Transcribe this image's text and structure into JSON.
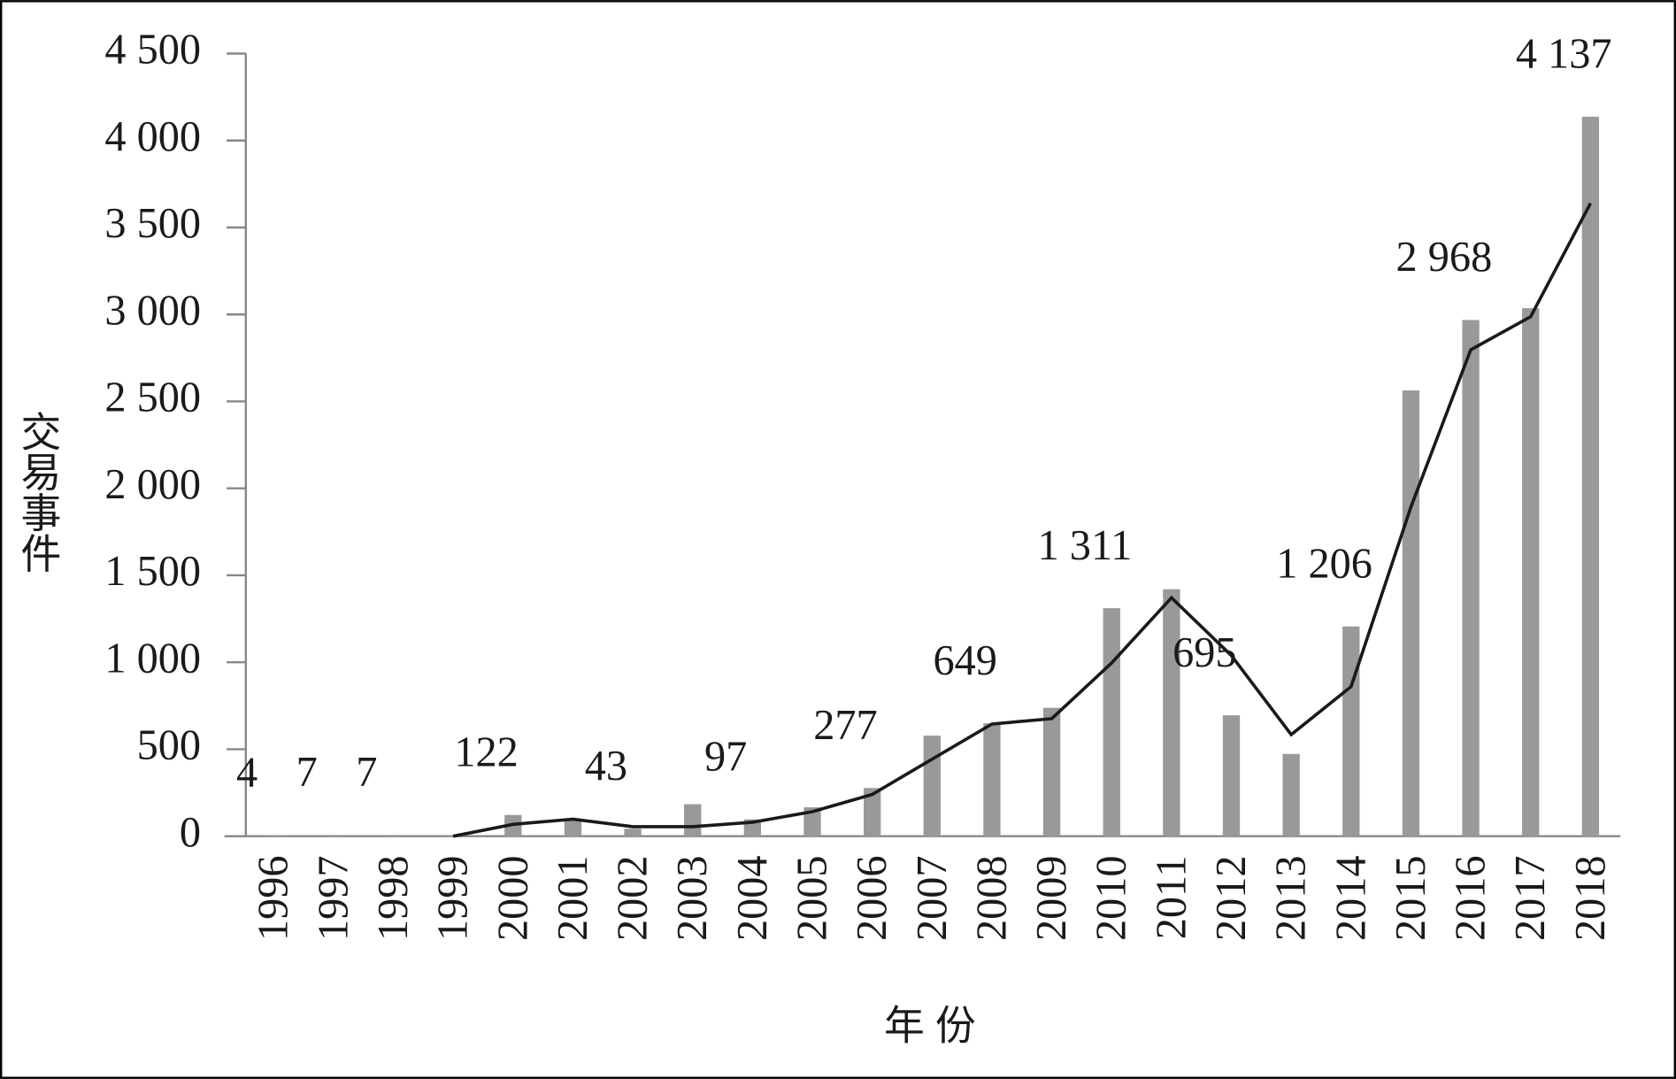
{
  "chart_data": {
    "type": "bar",
    "x_label": "年份",
    "y_label": "交易事件",
    "categories": [
      "1996",
      "1997",
      "1998",
      "1999",
      "2000",
      "2001",
      "2002",
      "2003",
      "2004",
      "2005",
      "2006",
      "2007",
      "2008",
      "2009",
      "2010",
      "2011",
      "2012",
      "2013",
      "2014",
      "2015",
      "2016",
      "2017",
      "2018"
    ],
    "values": [
      4,
      7,
      7,
      2,
      122,
      98,
      43,
      184,
      97,
      166,
      277,
      578,
      649,
      738,
      1311,
      1420,
      695,
      473,
      1206,
      2563,
      2968,
      3036,
      4137
    ],
    "value_labels": [
      "4",
      "7",
      "7",
      null,
      "122",
      null,
      "43",
      null,
      "97",
      null,
      "277",
      null,
      "649",
      null,
      "1 311",
      null,
      "695",
      null,
      "1 206",
      null,
      "2 968",
      null,
      "4 137"
    ],
    "color": "#999999",
    "line": {
      "type": "line",
      "color": "#1a1a1a",
      "values": [
        null,
        null,
        null,
        0,
        68,
        98,
        55,
        55,
        80,
        141,
        240,
        443,
        645,
        676,
        996,
        1371,
        1039,
        584,
        860,
        1893,
        2797,
        2987,
        3639
      ]
    },
    "ylim": [
      0,
      4500
    ],
    "yticks": [
      0,
      500,
      {
        "value": 1000,
        "label": "1 000"
      },
      {
        "value": 1500,
        "label": "1 500"
      },
      {
        "value": 2000,
        "label": "2 000"
      },
      {
        "value": 2500,
        "label": "2 500"
      },
      {
        "value": 3000,
        "label": "3 000"
      },
      {
        "value": 3500,
        "label": "3 500"
      },
      {
        "value": 4000,
        "label": "4 000"
      },
      {
        "value": 4500,
        "label": "4 500"
      }
    ]
  }
}
